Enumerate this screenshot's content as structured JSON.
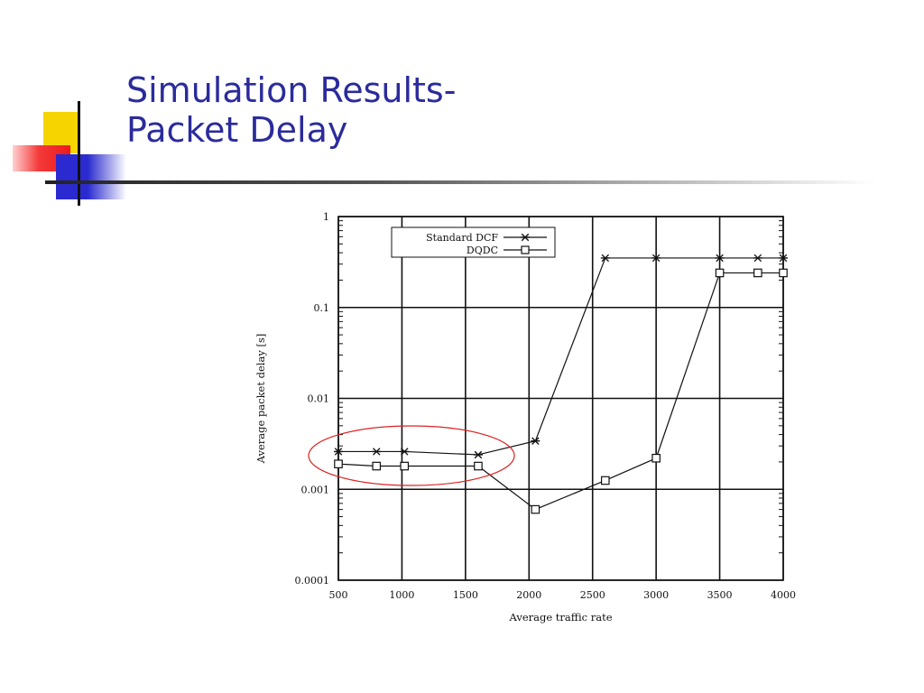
{
  "slide": {
    "title_line1": "Simulation Results-",
    "title_line2": "Packet Delay"
  },
  "colors": {
    "title": "#2b2b9c",
    "highlight_ellipse": "#dd2222",
    "deco_yellow": "#f5d400",
    "deco_red": "#ee1a1a",
    "deco_blue": "#2a2ad0"
  },
  "chart_data": {
    "type": "line",
    "xlabel": "Average traffic rate",
    "ylabel": "Average packet delay [s]",
    "xlim": [
      500,
      4000
    ],
    "ylim": [
      0.0001,
      1
    ],
    "y_scale": "log",
    "grid": true,
    "legend_position": "top-left",
    "x_ticks": [
      500,
      1000,
      1500,
      2000,
      2500,
      3000,
      3500,
      4000
    ],
    "x_tick_labels": [
      "500",
      "1000",
      "1500",
      "2000",
      "2500",
      "3000",
      "3500",
      "4000"
    ],
    "y_ticks": [
      0.0001,
      0.001,
      0.01,
      0.1,
      1
    ],
    "y_tick_labels": [
      "0.0001",
      "0.001",
      "0.01",
      "0.1",
      "1"
    ],
    "series": [
      {
        "name": "Standard DCF",
        "marker": "asterisk",
        "x": [
          500,
          800,
          1020,
          1600,
          2050,
          2600,
          3000,
          3500,
          3800,
          4000
        ],
        "y": [
          0.0026,
          0.0026,
          0.0026,
          0.0024,
          0.0034,
          0.35,
          0.35,
          0.35,
          0.35,
          0.35
        ]
      },
      {
        "name": "DQDC",
        "marker": "square",
        "x": [
          500,
          800,
          1020,
          1600,
          2050,
          2600,
          3000,
          3500,
          3800,
          4000
        ],
        "y": [
          0.0019,
          0.0018,
          0.0018,
          0.0018,
          0.0006,
          0.00125,
          0.0022,
          0.24,
          0.24,
          0.24
        ]
      }
    ]
  }
}
